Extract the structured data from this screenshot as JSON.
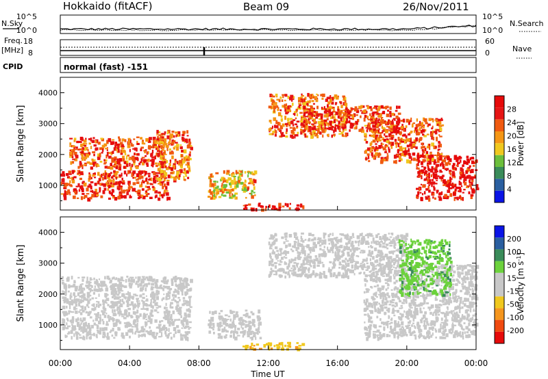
{
  "header": {
    "radar": "Hokkaido (fitACF)",
    "beam": "Beam 09",
    "date": "26/Nov/2011"
  },
  "strips": {
    "nsky_label": "N.Sky",
    "nsearch_label": "N.Search",
    "nsky_ticks": [
      "10^5",
      "10^0"
    ],
    "nsearch_ticks": [
      "10^5",
      "10^0"
    ],
    "freq_label_1": "Freq.",
    "freq_label_2": "[MHz]",
    "freq_ticks": [
      "18",
      "8"
    ],
    "nave_label": "Nave",
    "nave_ticks": [
      "60",
      "0"
    ],
    "cpid_label": "CPID",
    "cpid_value": "normal (fast) -151"
  },
  "colors": {
    "power_scale": [
      "#0a14e6",
      "#2a5fa0",
      "#3a8c5a",
      "#6cbf3c",
      "#f0c81e",
      "#f59614",
      "#f05a10",
      "#e61414",
      "#e60a0a"
    ],
    "velocity_scale": [
      "#e60a0a",
      "#f04a10",
      "#f5961e",
      "#f0c81e",
      "#c8c8c8",
      "#c8c8c8",
      "#6cd23c",
      "#3a8c5a",
      "#2a5fa0",
      "#0a14e6"
    ]
  },
  "chart_data": [
    {
      "type": "heatmap",
      "panel": "power",
      "ylabel": "Slant Range [km]",
      "yticks": [
        "1000",
        "2000",
        "3000",
        "4000"
      ],
      "ylim": [
        200,
        4500
      ],
      "x_range_hours": [
        0,
        24
      ],
      "colorbar_title": "Power [dB]",
      "colorbar_ticks": [
        "4",
        "8",
        "12",
        "16",
        "20",
        "24",
        "28"
      ],
      "colorbar_range": [
        0,
        32
      ],
      "echo_regions": [
        {
          "t_start": 0.0,
          "t_end": 6.2,
          "r_start": 600,
          "r_end": 1500,
          "power": 26
        },
        {
          "t_start": 0.5,
          "t_end": 6.0,
          "r_start": 1600,
          "r_end": 2600,
          "power": 24
        },
        {
          "t_start": 5.5,
          "t_end": 7.5,
          "r_start": 1200,
          "r_end": 2800,
          "power": 22
        },
        {
          "t_start": 8.5,
          "t_end": 11.2,
          "r_start": 600,
          "r_end": 1500,
          "power": 18
        },
        {
          "t_start": 10.5,
          "t_end": 14.0,
          "r_start": 250,
          "r_end": 450,
          "power": 28
        },
        {
          "t_start": 12.0,
          "t_end": 16.5,
          "r_start": 2600,
          "r_end": 4000,
          "power": 22
        },
        {
          "t_start": 14.0,
          "t_end": 19.5,
          "r_start": 2800,
          "r_end": 3600,
          "power": 26
        },
        {
          "t_start": 17.5,
          "t_end": 22.0,
          "r_start": 1800,
          "r_end": 3200,
          "power": 24
        },
        {
          "t_start": 20.5,
          "t_end": 24.0,
          "r_start": 600,
          "r_end": 2000,
          "power": 28
        }
      ]
    },
    {
      "type": "heatmap",
      "panel": "velocity",
      "xlabel": "Time UT",
      "xticks": [
        "00:00",
        "04:00",
        "08:00",
        "12:00",
        "16:00",
        "20:00",
        "00:00"
      ],
      "ylabel": "Slant Range [km]",
      "yticks": [
        "1000",
        "2000",
        "3000",
        "4000"
      ],
      "ylim": [
        200,
        4500
      ],
      "x_range_hours": [
        0,
        24
      ],
      "colorbar_title": "Velocity [m s",
      "colorbar_title_sup": "-1",
      "colorbar_title_end": "]",
      "colorbar_ticks": [
        "-200",
        "-100",
        "-50",
        "-15",
        "15",
        "50",
        "100",
        "200"
      ],
      "echo_regions": [
        {
          "t_start": 0.0,
          "t_end": 7.5,
          "r_start": 600,
          "r_end": 2600,
          "velocity": 0
        },
        {
          "t_start": 8.5,
          "t_end": 11.5,
          "r_start": 600,
          "r_end": 1500,
          "velocity": 0
        },
        {
          "t_start": 10.5,
          "t_end": 14.0,
          "r_start": 250,
          "r_end": 450,
          "velocity": -40
        },
        {
          "t_start": 12.0,
          "t_end": 20.0,
          "r_start": 2600,
          "r_end": 4000,
          "velocity": 0
        },
        {
          "t_start": 17.5,
          "t_end": 24.0,
          "r_start": 600,
          "r_end": 3000,
          "velocity": 0
        },
        {
          "t_start": 19.5,
          "t_end": 22.5,
          "r_start": 2000,
          "r_end": 3800,
          "velocity": 40
        }
      ]
    }
  ]
}
